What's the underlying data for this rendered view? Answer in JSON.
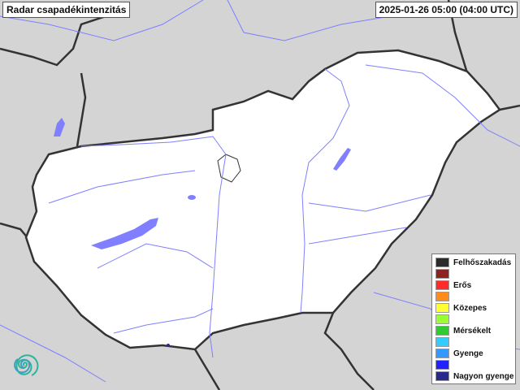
{
  "header": {
    "title": "Radar csapadékintenzitás",
    "timestamp": "2025-01-26 05:00 (04:00 UTC)"
  },
  "map": {
    "region": "Hungary",
    "colors": {
      "land": "#ffffff",
      "background": "#d4d4d4",
      "water": "#7f7fff",
      "border": "#333333"
    }
  },
  "legend": {
    "items": [
      {
        "label": "Felhőszakadás",
        "color": "#2b2b2b"
      },
      {
        "label": "",
        "color": "#8b2323"
      },
      {
        "label": "Erős",
        "color": "#ff2a2a"
      },
      {
        "label": "",
        "color": "#ff8c1a"
      },
      {
        "label": "Közepes",
        "color": "#ffff33"
      },
      {
        "label": "",
        "color": "#99ff33"
      },
      {
        "label": "Mérsékelt",
        "color": "#2ecc2e"
      },
      {
        "label": "",
        "color": "#33ccff"
      },
      {
        "label": "Gyenge",
        "color": "#3399ff"
      },
      {
        "label": "",
        "color": "#2222ff"
      },
      {
        "label": "Nagyon gyenge",
        "color": "#2a2a8a"
      }
    ]
  },
  "logo": {
    "icon": "spiral-logo-icon"
  }
}
